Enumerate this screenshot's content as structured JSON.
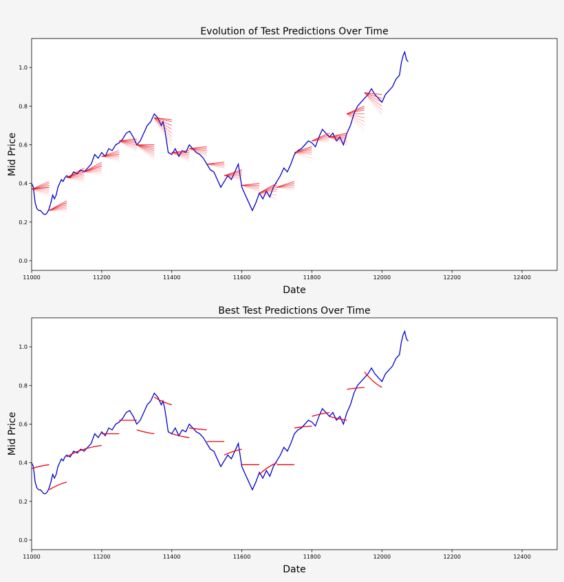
{
  "chart_data": [
    {
      "type": "line",
      "title": "Evolution of Test Predictions Over Time",
      "xlabel": "Date",
      "ylabel": "Mid Price",
      "xlim": [
        11000,
        12500
      ],
      "ylim": [
        -0.05,
        1.15
      ],
      "xticks": [
        11000,
        11200,
        11400,
        11600,
        11800,
        12000,
        12200,
        12400
      ],
      "yticks": [
        0.0,
        0.2,
        0.4,
        0.6,
        0.8,
        1.0
      ],
      "grid": false,
      "series": [
        {
          "role": "actual",
          "color": "#0000cc",
          "x": [
            11000,
            11005,
            11010,
            11015,
            11020,
            11025,
            11030,
            11035,
            11040,
            11045,
            11050,
            11055,
            11060,
            11065,
            11070,
            11075,
            11080,
            11085,
            11090,
            11095,
            11100,
            11110,
            11120,
            11130,
            11140,
            11150,
            11160,
            11170,
            11180,
            11190,
            11200,
            11210,
            11220,
            11230,
            11240,
            11250,
            11260,
            11270,
            11280,
            11290,
            11300,
            11310,
            11320,
            11330,
            11340,
            11350,
            11360,
            11370,
            11375,
            11380,
            11385,
            11390,
            11400,
            11410,
            11420,
            11430,
            11440,
            11450,
            11460,
            11470,
            11480,
            11490,
            11500,
            11510,
            11520,
            11530,
            11540,
            11550,
            11560,
            11570,
            11580,
            11590,
            11600,
            11610,
            11620,
            11630,
            11640,
            11650,
            11660,
            11670,
            11680,
            11690,
            11700,
            11710,
            11720,
            11730,
            11740,
            11750,
            11760,
            11770,
            11780,
            11790,
            11800,
            11810,
            11820,
            11830,
            11840,
            11850,
            11860,
            11870,
            11880,
            11890,
            11900,
            11910,
            11920,
            11930,
            11940,
            11950,
            11960,
            11970,
            11980,
            11990,
            12000,
            12010,
            12020,
            12030,
            12040,
            12050,
            12055,
            12060,
            12065,
            12070,
            12075
          ],
          "y": [
            0.4,
            0.38,
            0.3,
            0.27,
            0.26,
            0.26,
            0.25,
            0.24,
            0.24,
            0.25,
            0.27,
            0.3,
            0.34,
            0.32,
            0.34,
            0.38,
            0.4,
            0.42,
            0.41,
            0.43,
            0.44,
            0.43,
            0.46,
            0.45,
            0.47,
            0.46,
            0.48,
            0.5,
            0.55,
            0.53,
            0.56,
            0.54,
            0.58,
            0.57,
            0.6,
            0.61,
            0.63,
            0.66,
            0.67,
            0.64,
            0.6,
            0.62,
            0.66,
            0.7,
            0.72,
            0.76,
            0.74,
            0.7,
            0.72,
            0.68,
            0.62,
            0.56,
            0.55,
            0.58,
            0.54,
            0.57,
            0.56,
            0.6,
            0.58,
            0.56,
            0.55,
            0.53,
            0.5,
            0.47,
            0.46,
            0.42,
            0.38,
            0.41,
            0.44,
            0.42,
            0.46,
            0.5,
            0.38,
            0.34,
            0.3,
            0.26,
            0.3,
            0.35,
            0.32,
            0.36,
            0.33,
            0.38,
            0.41,
            0.44,
            0.48,
            0.46,
            0.5,
            0.55,
            0.57,
            0.58,
            0.6,
            0.62,
            0.61,
            0.59,
            0.64,
            0.68,
            0.66,
            0.64,
            0.66,
            0.62,
            0.64,
            0.6,
            0.66,
            0.7,
            0.76,
            0.8,
            0.82,
            0.84,
            0.86,
            0.89,
            0.86,
            0.84,
            0.82,
            0.86,
            0.88,
            0.9,
            0.94,
            0.96,
            1.02,
            1.06,
            1.08,
            1.04,
            1.03
          ]
        }
      ],
      "prediction_windows": [
        {
          "x0": 11000,
          "x1": 11050,
          "y0": 0.37,
          "ends": [
            0.38,
            0.39,
            0.4,
            0.41,
            0.38,
            0.37,
            0.36,
            0.35,
            0.34,
            0.33
          ]
        },
        {
          "x0": 11050,
          "x1": 11100,
          "y0": 0.26,
          "ends": [
            0.3,
            0.31,
            0.29,
            0.28,
            0.27,
            0.3,
            0.26,
            0.25
          ]
        },
        {
          "x0": 11100,
          "x1": 11150,
          "y0": 0.43,
          "ends": [
            0.46,
            0.47,
            0.48,
            0.45,
            0.44,
            0.43,
            0.42,
            0.41,
            0.4
          ]
        },
        {
          "x0": 11150,
          "x1": 11200,
          "y0": 0.46,
          "ends": [
            0.49,
            0.5,
            0.51,
            0.48,
            0.47,
            0.46,
            0.45,
            0.44
          ]
        },
        {
          "x0": 11200,
          "x1": 11250,
          "y0": 0.54,
          "ends": [
            0.55,
            0.56,
            0.57,
            0.54,
            0.53,
            0.52,
            0.51
          ]
        },
        {
          "x0": 11250,
          "x1": 11300,
          "y0": 0.62,
          "ends": [
            0.63,
            0.62,
            0.61,
            0.6,
            0.59,
            0.58,
            0.57,
            0.56
          ]
        },
        {
          "x0": 11300,
          "x1": 11350,
          "y0": 0.6,
          "ends": [
            0.6,
            0.59,
            0.58,
            0.57,
            0.56,
            0.55,
            0.54,
            0.53,
            0.52
          ]
        },
        {
          "x0": 11350,
          "x1": 11400,
          "y0": 0.74,
          "ends": [
            0.73,
            0.72,
            0.7,
            0.68,
            0.66,
            0.64,
            0.62,
            0.6,
            0.58
          ]
        },
        {
          "x0": 11400,
          "x1": 11450,
          "y0": 0.56,
          "ends": [
            0.57,
            0.56,
            0.55,
            0.54,
            0.53,
            0.52,
            0.51
          ]
        },
        {
          "x0": 11450,
          "x1": 11500,
          "y0": 0.58,
          "ends": [
            0.59,
            0.58,
            0.57,
            0.56,
            0.55,
            0.54,
            0.53
          ]
        },
        {
          "x0": 11500,
          "x1": 11550,
          "y0": 0.5,
          "ends": [
            0.51,
            0.5,
            0.49,
            0.48,
            0.47
          ]
        },
        {
          "x0": 11550,
          "x1": 11600,
          "y0": 0.44,
          "ends": [
            0.47,
            0.46,
            0.45,
            0.44,
            0.43,
            0.42,
            0.41
          ]
        },
        {
          "x0": 11600,
          "x1": 11650,
          "y0": 0.39,
          "ends": [
            0.4,
            0.39,
            0.38,
            0.37,
            0.36,
            0.35
          ]
        },
        {
          "x0": 11650,
          "x1": 11700,
          "y0": 0.35,
          "ends": [
            0.4,
            0.39,
            0.38,
            0.37,
            0.36,
            0.34,
            0.32,
            0.31
          ]
        },
        {
          "x0": 11700,
          "x1": 11750,
          "y0": 0.38,
          "ends": [
            0.41,
            0.4,
            0.39,
            0.38,
            0.37,
            0.36
          ]
        },
        {
          "x0": 11750,
          "x1": 11800,
          "y0": 0.56,
          "ends": [
            0.59,
            0.58,
            0.57,
            0.56,
            0.55,
            0.53,
            0.51
          ]
        },
        {
          "x0": 11800,
          "x1": 11850,
          "y0": 0.62,
          "ends": [
            0.66,
            0.65,
            0.64,
            0.63,
            0.62,
            0.61
          ]
        },
        {
          "x0": 11850,
          "x1": 11900,
          "y0": 0.64,
          "ends": [
            0.66,
            0.65,
            0.64,
            0.63,
            0.62,
            0.61,
            0.6,
            0.59
          ]
        },
        {
          "x0": 11900,
          "x1": 11950,
          "y0": 0.76,
          "ends": [
            0.8,
            0.79,
            0.78,
            0.76,
            0.74,
            0.72,
            0.7,
            0.68,
            0.66
          ]
        },
        {
          "x0": 11950,
          "x1": 12000,
          "y0": 0.87,
          "ends": [
            0.86,
            0.84,
            0.82,
            0.8,
            0.78,
            0.76,
            0.74
          ]
        }
      ]
    },
    {
      "type": "line",
      "title": "Best Test Predictions Over Time",
      "xlabel": "Date",
      "ylabel": "Mid Price",
      "xlim": [
        11000,
        12500
      ],
      "ylim": [
        -0.05,
        1.15
      ],
      "xticks": [
        11000,
        11200,
        11400,
        11600,
        11800,
        12000,
        12200,
        12400
      ],
      "yticks": [
        0.0,
        0.2,
        0.4,
        0.6,
        0.8,
        1.0
      ],
      "grid": false,
      "best_predictions": [
        {
          "x0": 11000,
          "x1": 11050,
          "y0": 0.37,
          "y1": 0.39
        },
        {
          "x0": 11050,
          "x1": 11100,
          "y0": 0.26,
          "y1": 0.3
        },
        {
          "x0": 11100,
          "x1": 11150,
          "y0": 0.43,
          "y1": 0.47
        },
        {
          "x0": 11150,
          "x1": 11200,
          "y0": 0.47,
          "y1": 0.49
        },
        {
          "x0": 11200,
          "x1": 11250,
          "y0": 0.55,
          "y1": 0.55
        },
        {
          "x0": 11250,
          "x1": 11300,
          "y0": 0.62,
          "y1": 0.62
        },
        {
          "x0": 11300,
          "x1": 11350,
          "y0": 0.57,
          "y1": 0.55
        },
        {
          "x0": 11350,
          "x1": 11400,
          "y0": 0.74,
          "y1": 0.7
        },
        {
          "x0": 11400,
          "x1": 11450,
          "y0": 0.55,
          "y1": 0.53
        },
        {
          "x0": 11450,
          "x1": 11500,
          "y0": 0.58,
          "y1": 0.57
        },
        {
          "x0": 11500,
          "x1": 11550,
          "y0": 0.51,
          "y1": 0.51
        },
        {
          "x0": 11550,
          "x1": 11600,
          "y0": 0.44,
          "y1": 0.47
        },
        {
          "x0": 11600,
          "x1": 11650,
          "y0": 0.39,
          "y1": 0.39
        },
        {
          "x0": 11650,
          "x1": 11700,
          "y0": 0.34,
          "y1": 0.4
        },
        {
          "x0": 11700,
          "x1": 11750,
          "y0": 0.39,
          "y1": 0.39
        },
        {
          "x0": 11750,
          "x1": 11800,
          "y0": 0.58,
          "y1": 0.59
        },
        {
          "x0": 11800,
          "x1": 11850,
          "y0": 0.64,
          "y1": 0.66
        },
        {
          "x0": 11850,
          "x1": 11900,
          "y0": 0.64,
          "y1": 0.62
        },
        {
          "x0": 11900,
          "x1": 11950,
          "y0": 0.78,
          "y1": 0.79
        },
        {
          "x0": 11950,
          "x1": 12000,
          "y0": 0.87,
          "y1": 0.79
        }
      ]
    }
  ],
  "colors": {
    "actual": "#0000cc",
    "prediction": "#e8000b",
    "plot_bg": "#ffffff",
    "page_bg": "#f5f5f5"
  }
}
